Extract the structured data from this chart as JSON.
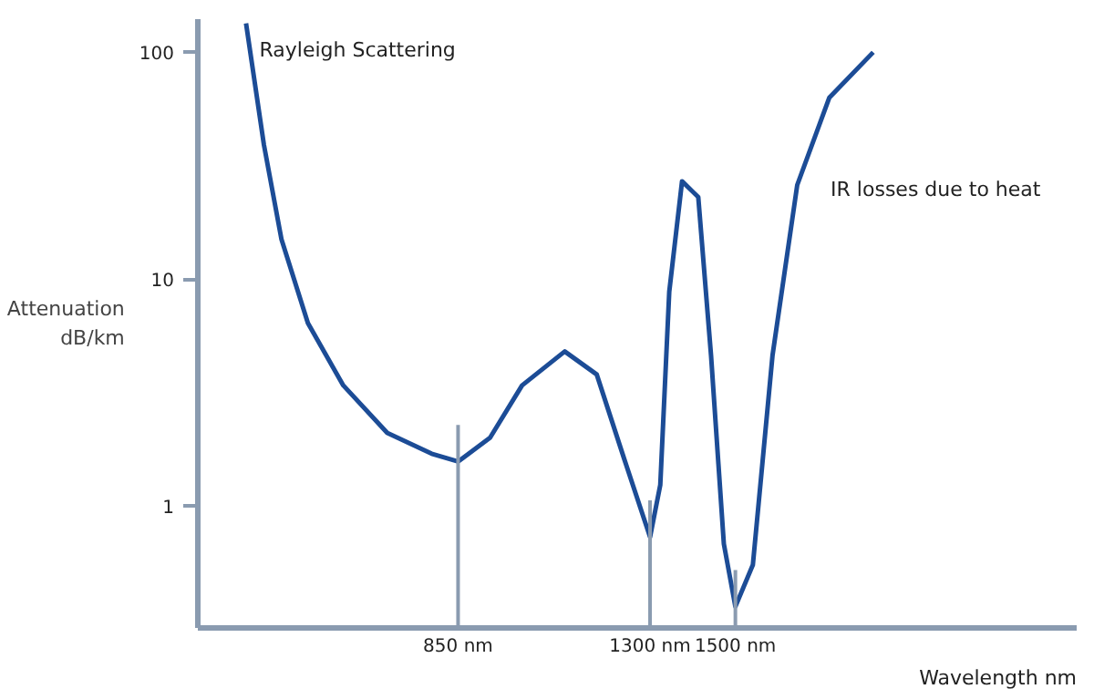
{
  "chart_data": {
    "type": "line",
    "xlabel": "Wavelength nm",
    "ylabel": "Attenuation\ndB/km",
    "log": "y",
    "x": [
      353,
      395,
      436,
      498,
      581,
      684,
      788,
      850,
      925,
      1000,
      1100,
      1175,
      1240,
      1300,
      1324,
      1345,
      1375,
      1413,
      1443,
      1473,
      1500,
      1541,
      1587,
      1645,
      1720,
      1823
    ],
    "series": [
      {
        "color": "#1c4c96",
        "values": [
          134,
          39,
          15,
          6.4,
          3.4,
          2.1,
          1.7,
          1.57,
          2.0,
          3.4,
          4.8,
          3.8,
          1.6,
          0.73,
          1.24,
          8.8,
          27,
          23,
          4.6,
          0.68,
          0.36,
          0.55,
          4.6,
          26,
          63,
          100
        ]
      }
    ],
    "xlim": [
      240,
      2300
    ],
    "xticks": [
      {
        "value": 850,
        "label": "850 nm"
      },
      {
        "value": 1300,
        "label": "1300 nm"
      },
      {
        "value": 1500,
        "label": "1500 nm"
      }
    ],
    "ylim": [
      0.29,
      140
    ],
    "yticks": [
      1,
      10,
      100
    ],
    "grid": false,
    "marker": "none",
    "line_style": "solid",
    "ref_lines": [
      {
        "axis": "x",
        "value": 850,
        "color": "#8a9bb0"
      },
      {
        "axis": "x",
        "value": 1300,
        "color": "#8a9bb0"
      },
      {
        "axis": "x",
        "value": 1500,
        "color": "#8a9bb0"
      }
    ],
    "annotations": [
      "Rayleigh Scattering",
      "IR losses due to heat"
    ]
  }
}
